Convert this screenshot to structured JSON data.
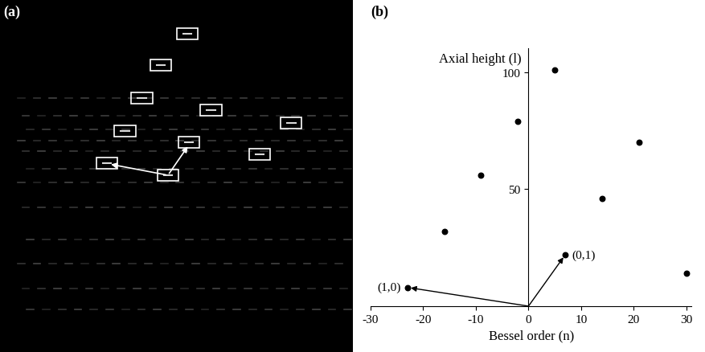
{
  "chart_data": [
    {
      "type": "image",
      "panel_label": "(a)"
    },
    {
      "type": "scatter",
      "panel_label": "(b)",
      "x_label": "Bessel order (n)",
      "y_label": "Axial height (l)",
      "x": [
        -23,
        7,
        -16,
        -9,
        -2,
        5,
        14,
        21,
        30
      ],
      "values": [
        8,
        22,
        32,
        56,
        79,
        101,
        46,
        70,
        14
      ],
      "color": "#000000",
      "marker": "circle",
      "xlim": [
        -30,
        31
      ],
      "xticks": [
        -30,
        -20,
        -10,
        0,
        10,
        20,
        30
      ],
      "ylim": [
        0,
        110
      ],
      "yticks": [
        50,
        100
      ],
      "annotations": [
        {
          "text": "(1,0)",
          "x": -23,
          "y": 8
        },
        {
          "text": "(0,1)",
          "x": 7,
          "y": 22
        }
      ]
    }
  ]
}
